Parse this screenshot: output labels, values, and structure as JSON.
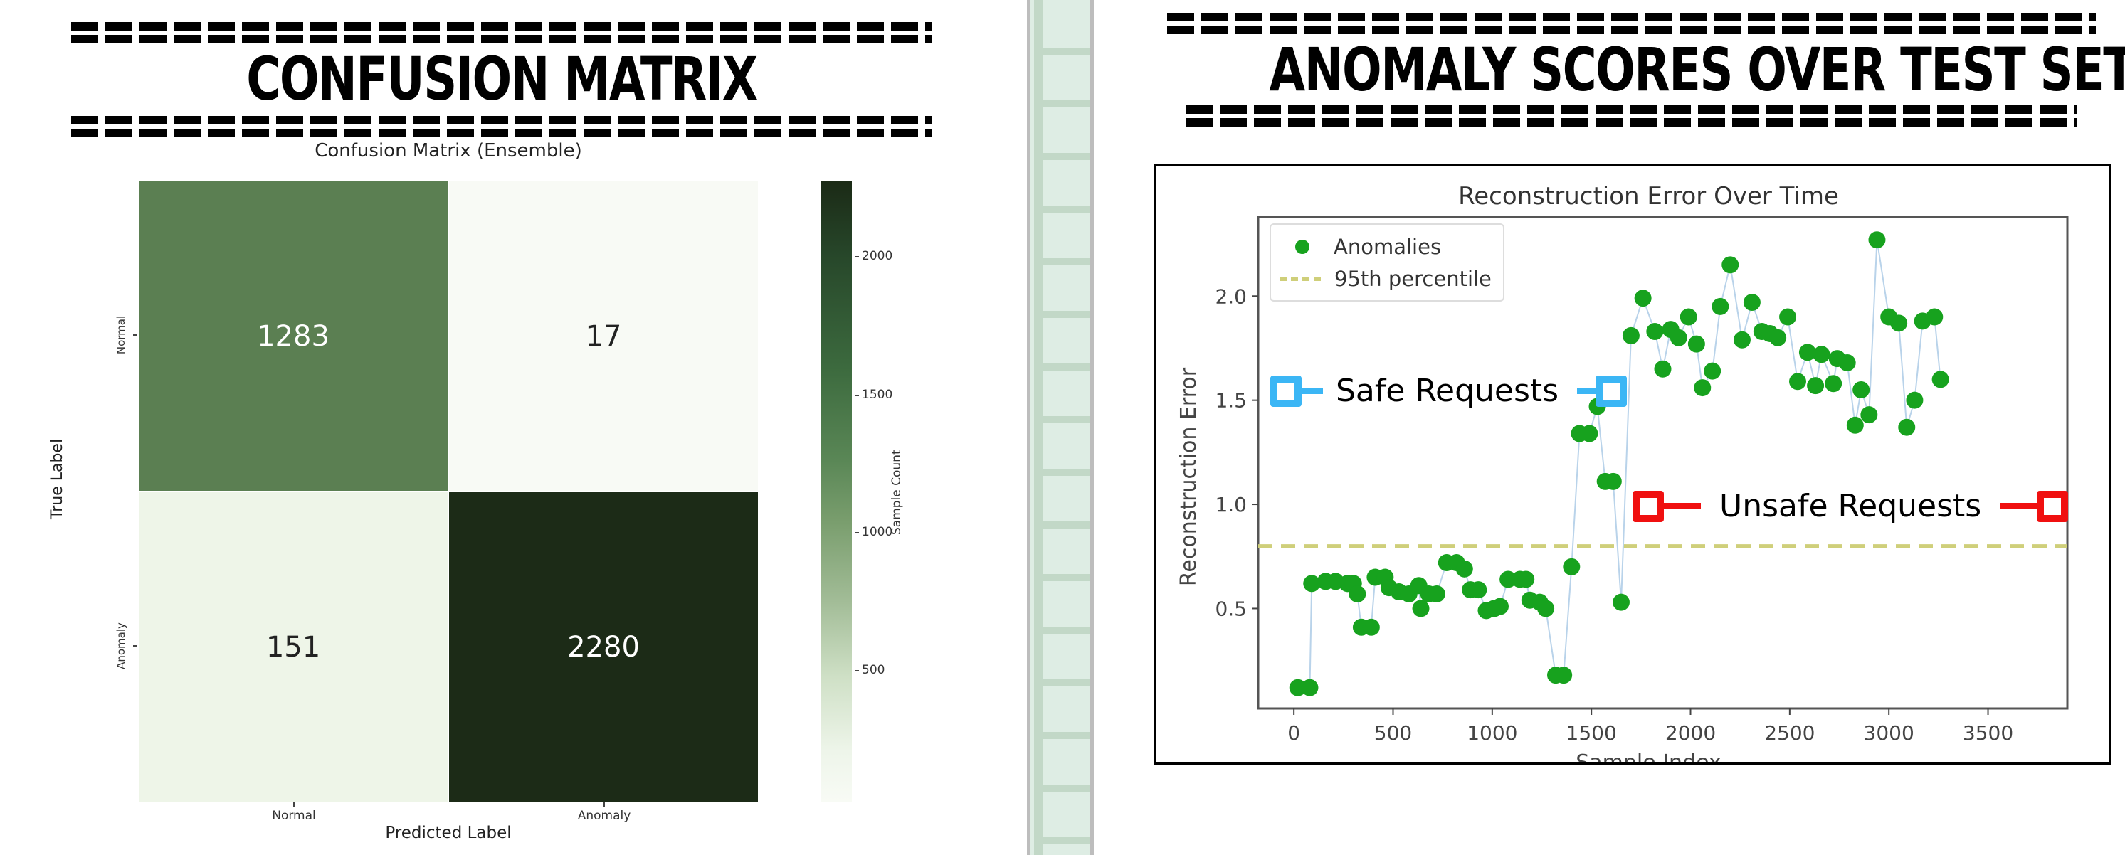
{
  "left_panel": {
    "header": "CONFUSION MATRIX",
    "figure_title": "Confusion Matrix (Ensemble)",
    "xlabel": "Predicted Label",
    "ylabel": "True Label",
    "xticks": [
      "Normal",
      "Anomaly"
    ],
    "yticks": [
      "Normal",
      "Anomaly"
    ],
    "cells": [
      {
        "value": "1283",
        "bg": "#5b7f52",
        "fg": "#ffffff"
      },
      {
        "value": "17",
        "bg": "#f8faf5",
        "fg": "#222222"
      },
      {
        "value": "151",
        "bg": "#eef5e8",
        "fg": "#222222"
      },
      {
        "value": "2280",
        "bg": "#1c2b17",
        "fg": "#ffffff"
      }
    ],
    "colorbar": {
      "label": "Sample Count",
      "ticks": [
        "2000",
        "1500",
        "1000",
        "500"
      ]
    }
  },
  "right_panel": {
    "header": "ANOMALY SCORES OVER TEST SET",
    "figure_title": "Reconstruction Error Over Time",
    "xlabel": "Sample Index",
    "ylabel": "Reconstruction Error",
    "legend": {
      "anomalies": "Anomalies",
      "threshold": "95th percentile"
    },
    "annotations": {
      "safe": "Safe Requests",
      "unsafe": "Unsafe Requests"
    },
    "xticks": [
      "0",
      "500",
      "1000",
      "1500",
      "2000",
      "2500",
      "3000",
      "3500"
    ],
    "yticks": [
      "0.5",
      "1.0",
      "1.5",
      "2.0"
    ]
  },
  "colors": {
    "point": "#17a21e",
    "stem": "#b9d3ea",
    "threshold": "#cfcf7a",
    "safe": "#3bb6f5",
    "unsafe": "#f01010"
  },
  "chart_data": [
    {
      "type": "heatmap",
      "title": "Confusion Matrix (Ensemble)",
      "xlabel": "Predicted Label",
      "ylabel": "True Label",
      "x_categories": [
        "Normal",
        "Anomaly"
      ],
      "y_categories": [
        "Normal",
        "Anomaly"
      ],
      "values": [
        [
          1283,
          17
        ],
        [
          151,
          2280
        ]
      ],
      "colorbar": {
        "label": "Sample Count",
        "ticks": [
          500,
          1000,
          1500,
          2000
        ],
        "range": [
          17,
          2280
        ],
        "colormap": "light-to-dark green"
      }
    },
    {
      "type": "scatter",
      "title": "Reconstruction Error Over Time",
      "xlabel": "Sample Index",
      "ylabel": "Reconstruction Error",
      "xlim": [
        -180,
        3900
      ],
      "ylim": [
        0.02,
        2.38
      ],
      "xticks": [
        0,
        500,
        1000,
        1500,
        2000,
        2500,
        3000,
        3500
      ],
      "yticks": [
        0.5,
        1.0,
        1.5,
        2.0
      ],
      "grid": false,
      "legend_position": "upper left",
      "series": [
        {
          "name": "Anomalies",
          "marker": "circle",
          "connected_by_thin_line": true,
          "points": [
            [
              20,
              0.12
            ],
            [
              80,
              0.12
            ],
            [
              90,
              0.62
            ],
            [
              160,
              0.63
            ],
            [
              210,
              0.63
            ],
            [
              270,
              0.62
            ],
            [
              300,
              0.62
            ],
            [
              320,
              0.57
            ],
            [
              340,
              0.41
            ],
            [
              390,
              0.41
            ],
            [
              410,
              0.65
            ],
            [
              460,
              0.65
            ],
            [
              480,
              0.6
            ],
            [
              530,
              0.58
            ],
            [
              580,
              0.57
            ],
            [
              630,
              0.61
            ],
            [
              640,
              0.5
            ],
            [
              680,
              0.57
            ],
            [
              720,
              0.57
            ],
            [
              770,
              0.72
            ],
            [
              820,
              0.72
            ],
            [
              860,
              0.69
            ],
            [
              890,
              0.59
            ],
            [
              930,
              0.59
            ],
            [
              970,
              0.49
            ],
            [
              1010,
              0.5
            ],
            [
              1040,
              0.51
            ],
            [
              1080,
              0.64
            ],
            [
              1140,
              0.64
            ],
            [
              1170,
              0.64
            ],
            [
              1190,
              0.54
            ],
            [
              1240,
              0.53
            ],
            [
              1270,
              0.5
            ],
            [
              1320,
              0.18
            ],
            [
              1360,
              0.18
            ],
            [
              1400,
              0.7
            ],
            [
              1440,
              1.34
            ],
            [
              1490,
              1.34
            ],
            [
              1530,
              1.47
            ],
            [
              1570,
              1.11
            ],
            [
              1610,
              1.11
            ],
            [
              1650,
              0.53
            ],
            [
              1700,
              1.81
            ],
            [
              1760,
              1.99
            ],
            [
              1820,
              1.83
            ],
            [
              1860,
              1.65
            ],
            [
              1900,
              1.84
            ],
            [
              1940,
              1.8
            ],
            [
              1990,
              1.9
            ],
            [
              2030,
              1.77
            ],
            [
              2060,
              1.56
            ],
            [
              2110,
              1.64
            ],
            [
              2150,
              1.95
            ],
            [
              2200,
              2.15
            ],
            [
              2260,
              1.79
            ],
            [
              2310,
              1.97
            ],
            [
              2360,
              1.83
            ],
            [
              2400,
              1.82
            ],
            [
              2440,
              1.8
            ],
            [
              2490,
              1.9
            ],
            [
              2540,
              1.59
            ],
            [
              2590,
              1.73
            ],
            [
              2630,
              1.57
            ],
            [
              2660,
              1.72
            ],
            [
              2720,
              1.58
            ],
            [
              2740,
              1.7
            ],
            [
              2790,
              1.68
            ],
            [
              2830,
              1.38
            ],
            [
              2860,
              1.55
            ],
            [
              2900,
              1.43
            ],
            [
              2940,
              2.27
            ],
            [
              3000,
              1.9
            ],
            [
              3050,
              1.87
            ],
            [
              3090,
              1.37
            ],
            [
              3130,
              1.5
            ],
            [
              3170,
              1.88
            ],
            [
              3230,
              1.9
            ],
            [
              3260,
              1.6
            ]
          ]
        },
        {
          "name": "95th percentile",
          "style": "dashed horizontal line",
          "y": 0.8
        }
      ],
      "annotations": [
        {
          "text": "Safe Requests",
          "color": "#3bb6f5",
          "y_approx": 1.55
        },
        {
          "text": "Unsafe Requests",
          "color": "#f01010",
          "y_approx": 1.0
        }
      ]
    }
  ]
}
